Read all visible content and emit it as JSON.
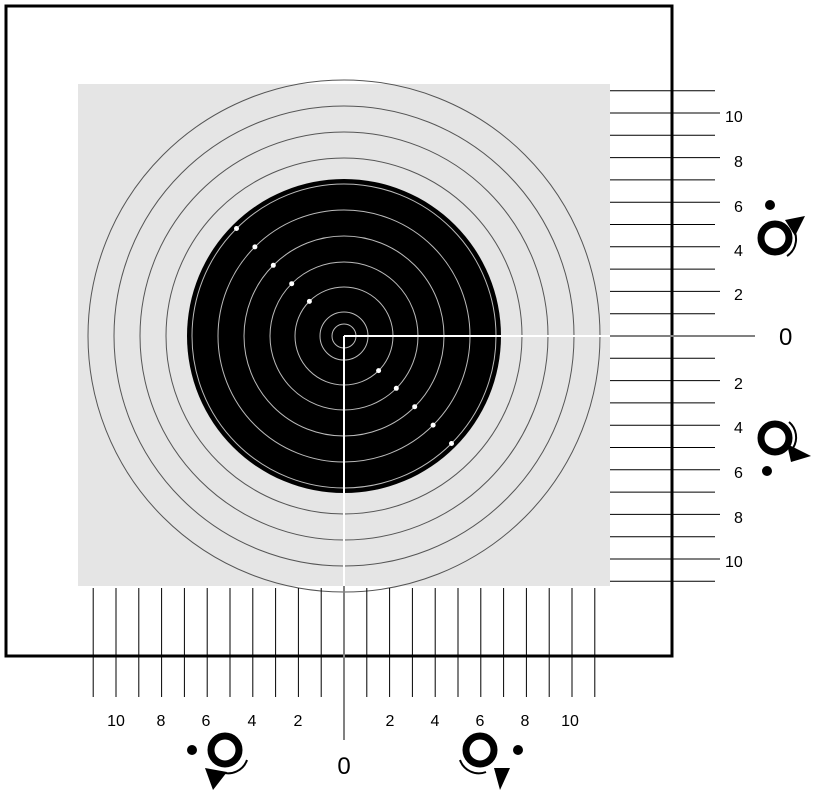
{
  "target": {
    "ring_count": 10,
    "colors": {
      "frame": "#000000",
      "card": "#e5e5e5",
      "black_center": "#000000",
      "ring_on_light": "#555555",
      "ring_on_dark": "#bbbbbb",
      "crosshair": "#ffffff"
    }
  },
  "right_scale": {
    "upper_labels": [
      "10",
      "8",
      "6",
      "4",
      "2"
    ],
    "zero": "0",
    "lower_labels": [
      "2",
      "4",
      "6",
      "8",
      "10"
    ]
  },
  "bottom_scale": {
    "left_labels": [
      "10",
      "8",
      "6",
      "4",
      "2"
    ],
    "zero": "0",
    "right_labels": [
      "2",
      "4",
      "6",
      "8",
      "10"
    ]
  },
  "adjustment_icons": [
    {
      "name": "rotate-up-icon",
      "direction": "up"
    },
    {
      "name": "rotate-down-icon",
      "direction": "down"
    },
    {
      "name": "rotate-left-icon",
      "direction": "left"
    },
    {
      "name": "rotate-right-icon",
      "direction": "right"
    }
  ]
}
